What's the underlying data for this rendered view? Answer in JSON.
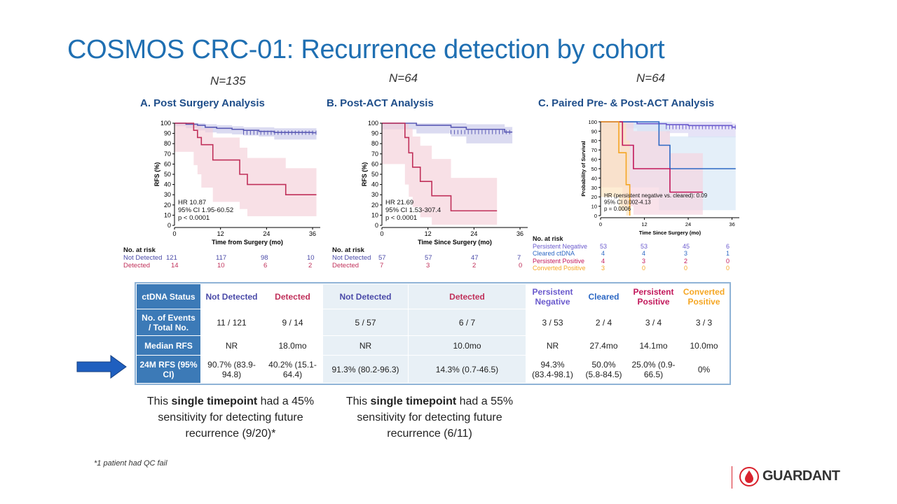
{
  "title": "COSMOS CRC-01: Recurrence detection by cohort",
  "panels": [
    {
      "n": "N=135",
      "title": "A. Post Surgery Analysis",
      "ylabel": "RFS (%)",
      "xlabel": "Time from Surgery (mo)",
      "hr_lines": [
        "HR 10.87",
        "95% CI 1.95-60.52",
        "p < 0.0001"
      ],
      "risk_header": "No. at risk",
      "risk_rows": [
        {
          "label": "Not Detected",
          "values": [
            "121",
            "117",
            "98",
            "10"
          ]
        },
        {
          "label": "Detected",
          "values": [
            "14",
            "10",
            "6",
            "2"
          ]
        }
      ]
    },
    {
      "n": "N=64",
      "title": "B. Post-ACT Analysis",
      "ylabel": "RFS (%)",
      "xlabel": "Time Since Surgery (mo)",
      "hr_lines": [
        "HR 21.69",
        "95% CI 1.53-307.4",
        "p < 0.0001"
      ],
      "risk_header": "No. at risk",
      "risk_rows": [
        {
          "label": "Not Detected",
          "values": [
            "57",
            "57",
            "47",
            "7"
          ]
        },
        {
          "label": "Detected",
          "values": [
            "7",
            "3",
            "2",
            "0"
          ]
        }
      ]
    },
    {
      "n": "N=64",
      "title": "C. Paired Pre- & Post-ACT Analysis",
      "ylabel": "Probability of Survival",
      "xlabel": "Time Since Surgery (mo)",
      "hr_lines": [
        "HR (persistent negative vs. cleared): 0.09",
        "95% CI 0.002-4.13",
        "p = 0.0006"
      ],
      "risk_header": "No. at risk",
      "risk_rows": [
        {
          "label": "Persistent Negative",
          "values": [
            "53",
            "53",
            "45",
            "6"
          ]
        },
        {
          "label": "Cleared ctDNA",
          "values": [
            "4",
            "4",
            "3",
            "1"
          ]
        },
        {
          "label": "Persistent Positive",
          "values": [
            "4",
            "3",
            "2",
            "0"
          ]
        },
        {
          "label": "Converted Positive",
          "values": [
            "3",
            "0",
            "0",
            "0"
          ]
        }
      ]
    }
  ],
  "chart_data": [
    {
      "type": "line",
      "title": "A. Post Surgery Analysis",
      "xlabel": "Time from Surgery (mo)",
      "ylabel": "RFS (%)",
      "xlim": [
        0,
        38
      ],
      "ylim": [
        0,
        100
      ],
      "xticks": [
        0,
        12,
        24,
        36
      ],
      "yticks": [
        0,
        10,
        20,
        30,
        40,
        50,
        60,
        70,
        80,
        90,
        100
      ],
      "series": [
        {
          "name": "Not Detected",
          "color": "#5b5bb5",
          "band": "#c8c8ea",
          "x": [
            0,
            3,
            6,
            8,
            11,
            15,
            18,
            22,
            26,
            36,
            37
          ],
          "y": [
            100,
            99,
            98,
            96,
            95,
            94,
            93,
            92,
            91,
            90.7,
            90.7
          ],
          "lo": [
            100,
            97,
            95,
            93,
            91,
            90,
            89,
            88,
            87,
            84,
            84
          ],
          "hi": [
            100,
            100,
            100,
            99,
            98,
            97,
            96,
            96,
            95,
            95,
            95
          ]
        },
        {
          "name": "Detected",
          "color": "#c0305a",
          "band": "#f4cfd9",
          "x": [
            0,
            5,
            6,
            7,
            10,
            17,
            19,
            29,
            37
          ],
          "y": [
            100,
            93,
            86,
            79,
            64,
            50,
            40,
            30,
            30
          ],
          "lo": [
            100,
            72,
            59,
            50,
            37,
            23,
            16,
            9,
            9
          ],
          "hi": [
            100,
            100,
            98,
            95,
            86,
            76,
            66,
            56,
            56
          ]
        }
      ]
    },
    {
      "type": "line",
      "title": "B. Post-ACT Analysis",
      "xlabel": "Time Since Surgery (mo)",
      "ylabel": "RFS (%)",
      "xlim": [
        0,
        38
      ],
      "ylim": [
        0,
        100
      ],
      "xticks": [
        0,
        12,
        24,
        36
      ],
      "yticks": [
        0,
        10,
        20,
        30,
        40,
        50,
        60,
        70,
        80,
        90,
        100
      ],
      "series": [
        {
          "name": "Not Detected",
          "color": "#5b5bb5",
          "band": "#c8c8ea",
          "x": [
            0,
            9,
            18,
            22,
            32,
            34
          ],
          "y": [
            100,
            98,
            96,
            94,
            91.3,
            91.3
          ],
          "lo": [
            100,
            94,
            90,
            87,
            80.2,
            80.2
          ],
          "hi": [
            100,
            100,
            100,
            99,
            96.3,
            96.3
          ]
        },
        {
          "name": "Detected",
          "color": "#c0305a",
          "band": "#f4cfd9",
          "x": [
            0,
            6,
            7,
            8,
            10,
            13,
            18,
            30
          ],
          "y": [
            100,
            86,
            71,
            57,
            43,
            29,
            14.3,
            14.3
          ],
          "lo": [
            100,
            60,
            40,
            28,
            18,
            8,
            0.7,
            0.7
          ],
          "hi": [
            100,
            100,
            95,
            87,
            78,
            65,
            46.5,
            46.5
          ]
        }
      ]
    },
    {
      "type": "line",
      "title": "C. Paired Pre- & Post-ACT Analysis",
      "xlabel": "Time Since Surgery (mo)",
      "ylabel": "Probability of Survival",
      "xlim": [
        0,
        38
      ],
      "ylim": [
        0,
        100
      ],
      "xticks": [
        0,
        12,
        24,
        36
      ],
      "yticks": [
        0,
        10,
        20,
        30,
        40,
        50,
        60,
        70,
        80,
        90,
        100
      ],
      "series": [
        {
          "name": "Persistent Negative",
          "color": "#6a5acd",
          "band": "#d9d4f2",
          "x": [
            0,
            10,
            18,
            24,
            36,
            37
          ],
          "y": [
            100,
            98,
            97,
            96,
            94.3,
            94.3
          ],
          "lo": [
            100,
            93,
            90,
            88,
            83.4,
            83.4
          ],
          "hi": [
            100,
            100,
            100,
            100,
            98.1,
            98.1
          ]
        },
        {
          "name": "Cleared ctDNA",
          "color": "#2d68c4",
          "band": "#d6e6f6",
          "x": [
            0,
            16,
            19,
            37
          ],
          "y": [
            100,
            75,
            50,
            50
          ],
          "lo": [
            100,
            30,
            5.8,
            5.8
          ],
          "hi": [
            100,
            100,
            84.5,
            84.5
          ]
        },
        {
          "name": "Persistent Positive",
          "color": "#c2185b",
          "band": "#f6d3df",
          "x": [
            0,
            6,
            9,
            19,
            28
          ],
          "y": [
            100,
            75,
            50,
            25,
            25
          ],
          "lo": [
            100,
            30,
            10,
            0.9,
            0.9
          ],
          "hi": [
            100,
            100,
            90,
            66.5,
            66.5
          ]
        },
        {
          "name": "Converted Positive",
          "color": "#f5a623",
          "band": "#fde3bd",
          "x": [
            0,
            5,
            7,
            8
          ],
          "y": [
            100,
            67,
            33,
            0
          ],
          "lo": [
            100,
            20,
            5,
            0
          ],
          "hi": [
            100,
            100,
            80,
            0
          ]
        }
      ]
    }
  ],
  "table": {
    "header": [
      "ctDNA Status",
      "Not Detected",
      "Detected",
      "Not Detected",
      "Detected",
      "Persistent Negative",
      "Cleared",
      "Persistent Positive",
      "Converted Positive"
    ],
    "header_colors": [
      "#ffffff",
      "#4a4aa8",
      "#c0305a",
      "#4a4aa8",
      "#c0305a",
      "#6a5acd",
      "#2d68c4",
      "#c2185b",
      "#f5a623"
    ],
    "rows": [
      {
        "label": "No. of Events / Total No.",
        "cells": [
          "11 / 121",
          "9 / 14",
          "5 / 57",
          "6 / 7",
          "3 / 53",
          "2 / 4",
          "3 / 4",
          "3 / 3"
        ]
      },
      {
        "label": "Median RFS",
        "cells": [
          "NR",
          "18.0mo",
          "NR",
          "10.0mo",
          "NR",
          "27.4mo",
          "14.1mo",
          "10.0mo"
        ]
      },
      {
        "label": "24M RFS (95% CI)",
        "cells": [
          "90.7% (83.9-94.8)",
          "40.2% (15.1-64.4)",
          "91.3% (80.2-96.3)",
          "14.3% (0.7-46.5)",
          "94.3% (83.4-98.1)",
          "50.0% (5.8-84.5)",
          "25.0% (0.9-66.5)",
          "0%"
        ]
      }
    ]
  },
  "notes": [
    {
      "pre": "This ",
      "bold": "single timepoint",
      "post": " had a 45% sensitivity for detecting future recurrence (9/20)*"
    },
    {
      "pre": "This ",
      "bold": "single timepoint",
      "post": " had a 55% sensitivity for detecting future recurrence (6/11)"
    }
  ],
  "footnote": "*1 patient had QC fail",
  "logo_text": "GUARDANT",
  "colors": {
    "title": "#1f6fb2",
    "table_header": "#3c7ab7",
    "arrow": "#1f5fbf",
    "logo_red": "#d9232e"
  }
}
